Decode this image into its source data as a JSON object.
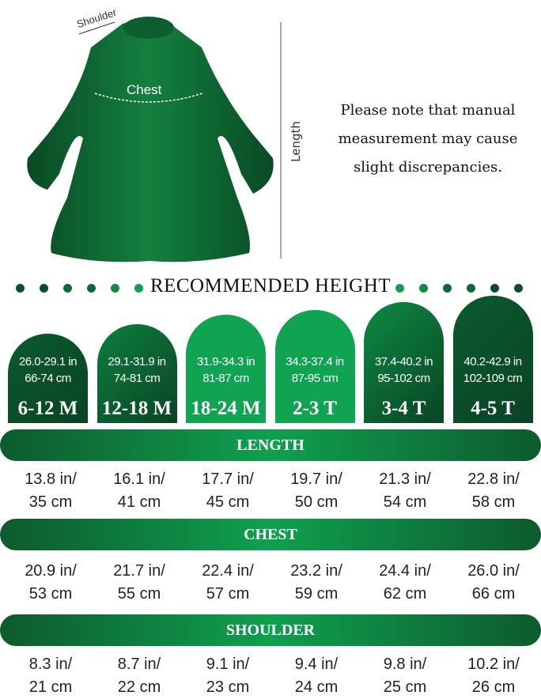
{
  "diagram": {
    "shoulder_label": "Shoulder",
    "chest_label": "Chest",
    "length_label": "Length"
  },
  "note": {
    "lines": [
      "Please note that manual",
      "measurement may cause",
      "slight discrepancies."
    ]
  },
  "heading": "RECOMMENDED HEIGHT",
  "colors": {
    "dark_green": "#0b4d28",
    "mid_green": "#0fa04f",
    "dress_green": "#0f5a2c"
  },
  "sizes": [
    {
      "size": "6-12 M",
      "in": "26.0-29.1 in",
      "cm": "66-74 cm"
    },
    {
      "size": "12-18 M",
      "in": "29.1-31.9 in",
      "cm": "74-81 cm"
    },
    {
      "size": "18-24 M",
      "in": "31.9-34.3 in",
      "cm": "81-87 cm"
    },
    {
      "size": "2-3 T",
      "in": "34.3-37.4 in",
      "cm": "87-95 cm"
    },
    {
      "size": "3-4 T",
      "in": "37.4-40.2 in",
      "cm": "95-102 cm"
    },
    {
      "size": "4-5 T",
      "in": "40.2-42.9 in",
      "cm": "102-109 cm"
    }
  ],
  "measurements": [
    {
      "label": "LENGTH",
      "values": [
        [
          "13.8 in/",
          "35 cm"
        ],
        [
          "16.1 in/",
          "41 cm"
        ],
        [
          "17.7 in/",
          "45 cm"
        ],
        [
          "19.7 in/",
          "50 cm"
        ],
        [
          "21.3 in/",
          "54 cm"
        ],
        [
          "22.8 in/",
          "58 cm"
        ]
      ]
    },
    {
      "label": "CHEST",
      "values": [
        [
          "20.9 in/",
          "53 cm"
        ],
        [
          "21.7 in/",
          "55 cm"
        ],
        [
          "22.4 in/",
          "57 cm"
        ],
        [
          "23.2 in/",
          "59 cm"
        ],
        [
          "24.4 in/",
          "62 cm"
        ],
        [
          "26.0 in/",
          "66 cm"
        ]
      ]
    },
    {
      "label": "SHOULDER",
      "values": [
        [
          "8.3 in/",
          "21 cm"
        ],
        [
          "8.7 in/",
          "22 cm"
        ],
        [
          "9.1 in/",
          "23 cm"
        ],
        [
          "9.4 in/",
          "24 cm"
        ],
        [
          "9.8 in/",
          "25 cm"
        ],
        [
          "10.2 in/",
          "26 cm"
        ]
      ]
    }
  ]
}
